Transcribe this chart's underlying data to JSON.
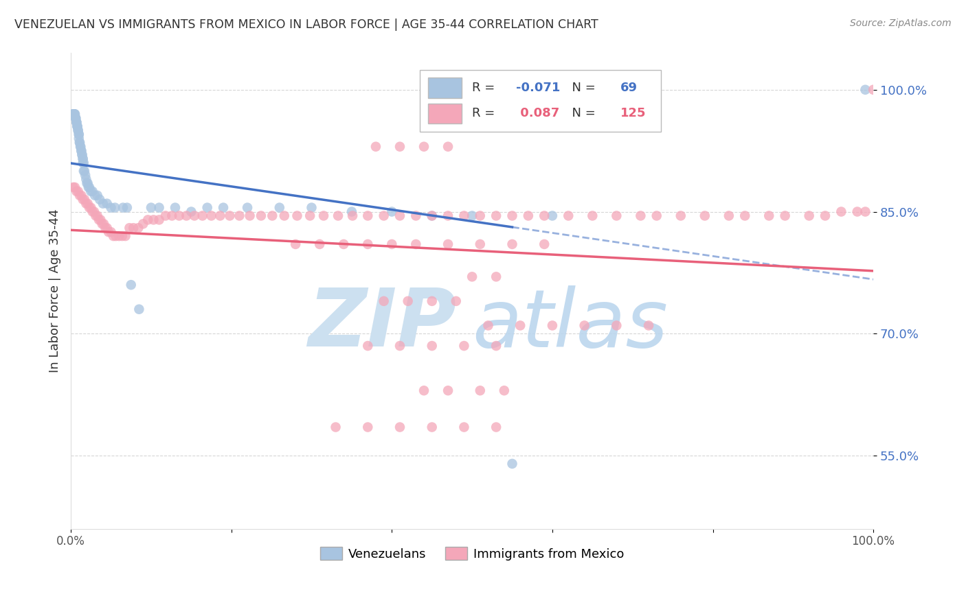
{
  "title": "VENEZUELAN VS IMMIGRANTS FROM MEXICO IN LABOR FORCE | AGE 35-44 CORRELATION CHART",
  "source": "Source: ZipAtlas.com",
  "ylabel": "In Labor Force | Age 35-44",
  "xlim": [
    0.0,
    1.0
  ],
  "ylim": [
    0.46,
    1.045
  ],
  "yticks": [
    0.55,
    0.7,
    0.85,
    1.0
  ],
  "ytick_labels": [
    "55.0%",
    "70.0%",
    "85.0%",
    "100.0%"
  ],
  "xticks": [
    0.0,
    0.2,
    0.4,
    0.6,
    0.8,
    1.0
  ],
  "xtick_labels": [
    "0.0%",
    "",
    "",
    "",
    "",
    "100.0%"
  ],
  "legend_labels": [
    "Venezuelans",
    "Immigrants from Mexico"
  ],
  "R_venezuelan": -0.071,
  "N_venezuelan": 69,
  "R_mexico": 0.087,
  "N_mexico": 125,
  "color_venezuelan": "#a8c4e0",
  "color_mexico": "#f4a7b9",
  "line_color_venezuelan": "#4472c4",
  "line_color_mexico": "#e8607a",
  "watermark_zip": "ZIP",
  "watermark_atlas": "atlas",
  "watermark_color": "#cce0f0",
  "title_color": "#333333",
  "axis_label_color": "#333333",
  "tick_color_y": "#4472c4",
  "grid_color": "#cccccc",
  "venezuelan_x": [
    0.002,
    0.003,
    0.004,
    0.004,
    0.005,
    0.005,
    0.006,
    0.006,
    0.006,
    0.007,
    0.007,
    0.007,
    0.008,
    0.008,
    0.008,
    0.009,
    0.009,
    0.01,
    0.01,
    0.01,
    0.011,
    0.011,
    0.012,
    0.012,
    0.013,
    0.013,
    0.014,
    0.014,
    0.015,
    0.015,
    0.015,
    0.016,
    0.016,
    0.017,
    0.018,
    0.019,
    0.02,
    0.021,
    0.022,
    0.023,
    0.025,
    0.027,
    0.03,
    0.033,
    0.036,
    0.04,
    0.045,
    0.05,
    0.055,
    0.065,
    0.07,
    0.075,
    0.085,
    0.1,
    0.11,
    0.13,
    0.15,
    0.17,
    0.19,
    0.22,
    0.26,
    0.3,
    0.35,
    0.4,
    0.45,
    0.5,
    0.55,
    0.6,
    0.99
  ],
  "venezuelan_y": [
    0.97,
    0.97,
    0.97,
    0.97,
    0.97,
    0.97,
    0.965,
    0.965,
    0.965,
    0.96,
    0.96,
    0.96,
    0.955,
    0.955,
    0.955,
    0.95,
    0.95,
    0.945,
    0.945,
    0.94,
    0.935,
    0.935,
    0.93,
    0.93,
    0.925,
    0.925,
    0.92,
    0.92,
    0.915,
    0.915,
    0.91,
    0.91,
    0.9,
    0.9,
    0.895,
    0.89,
    0.885,
    0.885,
    0.88,
    0.88,
    0.875,
    0.875,
    0.87,
    0.87,
    0.865,
    0.86,
    0.86,
    0.855,
    0.855,
    0.855,
    0.855,
    0.76,
    0.73,
    0.855,
    0.855,
    0.855,
    0.85,
    0.855,
    0.855,
    0.855,
    0.855,
    0.855,
    0.85,
    0.85,
    0.845,
    0.845,
    0.54,
    0.845,
    1.0
  ],
  "mexico_x": [
    0.003,
    0.005,
    0.007,
    0.009,
    0.011,
    0.013,
    0.015,
    0.017,
    0.019,
    0.021,
    0.023,
    0.025,
    0.027,
    0.029,
    0.031,
    0.033,
    0.035,
    0.037,
    0.039,
    0.041,
    0.043,
    0.045,
    0.047,
    0.05,
    0.053,
    0.056,
    0.06,
    0.064,
    0.068,
    0.073,
    0.078,
    0.084,
    0.09,
    0.096,
    0.103,
    0.11,
    0.118,
    0.126,
    0.135,
    0.144,
    0.154,
    0.164,
    0.175,
    0.186,
    0.198,
    0.21,
    0.223,
    0.237,
    0.251,
    0.266,
    0.282,
    0.298,
    0.315,
    0.333,
    0.351,
    0.37,
    0.39,
    0.41,
    0.43,
    0.45,
    0.47,
    0.49,
    0.51,
    0.53,
    0.55,
    0.57,
    0.59,
    0.62,
    0.65,
    0.68,
    0.71,
    0.73,
    0.76,
    0.79,
    0.82,
    0.84,
    0.87,
    0.89,
    0.92,
    0.94,
    0.96,
    0.98,
    0.99,
    1.0,
    0.38,
    0.41,
    0.44,
    0.47,
    0.5,
    0.53,
    0.39,
    0.42,
    0.45,
    0.48,
    0.52,
    0.56,
    0.6,
    0.64,
    0.68,
    0.72,
    0.28,
    0.31,
    0.34,
    0.37,
    0.4,
    0.43,
    0.47,
    0.51,
    0.55,
    0.59,
    0.44,
    0.47,
    0.51,
    0.54,
    0.37,
    0.41,
    0.45,
    0.49,
    0.53,
    0.33,
    0.37,
    0.41,
    0.45,
    0.49,
    0.53
  ],
  "mexico_y": [
    0.88,
    0.88,
    0.875,
    0.875,
    0.87,
    0.87,
    0.865,
    0.865,
    0.86,
    0.86,
    0.855,
    0.855,
    0.85,
    0.85,
    0.845,
    0.845,
    0.84,
    0.84,
    0.835,
    0.835,
    0.83,
    0.83,
    0.825,
    0.825,
    0.82,
    0.82,
    0.82,
    0.82,
    0.82,
    0.83,
    0.83,
    0.83,
    0.835,
    0.84,
    0.84,
    0.84,
    0.845,
    0.845,
    0.845,
    0.845,
    0.845,
    0.845,
    0.845,
    0.845,
    0.845,
    0.845,
    0.845,
    0.845,
    0.845,
    0.845,
    0.845,
    0.845,
    0.845,
    0.845,
    0.845,
    0.845,
    0.845,
    0.845,
    0.845,
    0.845,
    0.845,
    0.845,
    0.845,
    0.845,
    0.845,
    0.845,
    0.845,
    0.845,
    0.845,
    0.845,
    0.845,
    0.845,
    0.845,
    0.845,
    0.845,
    0.845,
    0.845,
    0.845,
    0.845,
    0.845,
    0.85,
    0.85,
    0.85,
    1.0,
    0.93,
    0.93,
    0.93,
    0.93,
    0.77,
    0.77,
    0.74,
    0.74,
    0.74,
    0.74,
    0.71,
    0.71,
    0.71,
    0.71,
    0.71,
    0.71,
    0.81,
    0.81,
    0.81,
    0.81,
    0.81,
    0.81,
    0.81,
    0.81,
    0.81,
    0.81,
    0.63,
    0.63,
    0.63,
    0.63,
    0.685,
    0.685,
    0.685,
    0.685,
    0.685,
    0.585,
    0.585,
    0.585,
    0.585,
    0.585,
    0.585
  ]
}
